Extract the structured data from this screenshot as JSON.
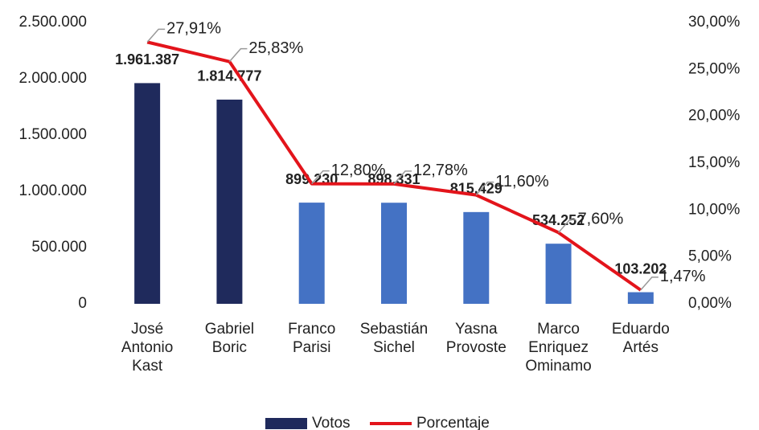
{
  "chart_data": {
    "type": "bar",
    "categories": [
      "José Antonio Kast",
      "Gabriel Boric",
      "Franco Parisi",
      "Sebastián Sichel",
      "Yasna Provoste",
      "Marco Enriquez Ominamo",
      "Eduardo Artés"
    ],
    "series": [
      {
        "name": "Votos",
        "type": "bar",
        "color": "#1f2a5c",
        "colors": [
          "#1f2a5c",
          "#1f2a5c",
          "#4472c4",
          "#4472c4",
          "#4472c4",
          "#4472c4",
          "#4472c4"
        ],
        "values": [
          1961387,
          1814777,
          899230,
          898331,
          815429,
          534252,
          103202
        ],
        "value_labels": [
          "1.961.387",
          "1.814.777",
          "899.230",
          "898.331",
          "815.429",
          "534.252",
          "103.202"
        ]
      },
      {
        "name": "Porcentaje",
        "type": "line",
        "axis": "y2",
        "color": "#e3141b",
        "values": [
          27.91,
          25.83,
          12.8,
          12.78,
          11.6,
          7.6,
          1.47
        ],
        "value_labels": [
          "27,91%",
          "25,83%",
          "12,80%",
          "12,78%",
          "11,60%",
          "7,60%",
          "1,47%"
        ]
      }
    ],
    "ylim": [
      0,
      2500000
    ],
    "yticks": [
      0,
      {
        "value": 500000,
        "label": "500.000"
      },
      {
        "value": 1000000,
        "label": "1.000.000"
      },
      {
        "value": 1500000,
        "label": "1.500.000"
      },
      {
        "value": 2000000,
        "label": "2.000.000"
      },
      {
        "value": 2500000,
        "label": "2.500.000"
      }
    ],
    "y2lim": [
      0,
      30
    ],
    "y2ticks": [
      {
        "value": 0,
        "label": "0,00%"
      },
      {
        "value": 5,
        "label": "5,00%"
      },
      {
        "value": 10,
        "label": "10,00%"
      },
      {
        "value": 15,
        "label": "15,00%"
      },
      {
        "value": 20,
        "label": "20,00%"
      },
      {
        "value": 25,
        "label": "25,00%"
      },
      {
        "value": 30,
        "label": "30,00%"
      }
    ],
    "legend": "bottom"
  }
}
